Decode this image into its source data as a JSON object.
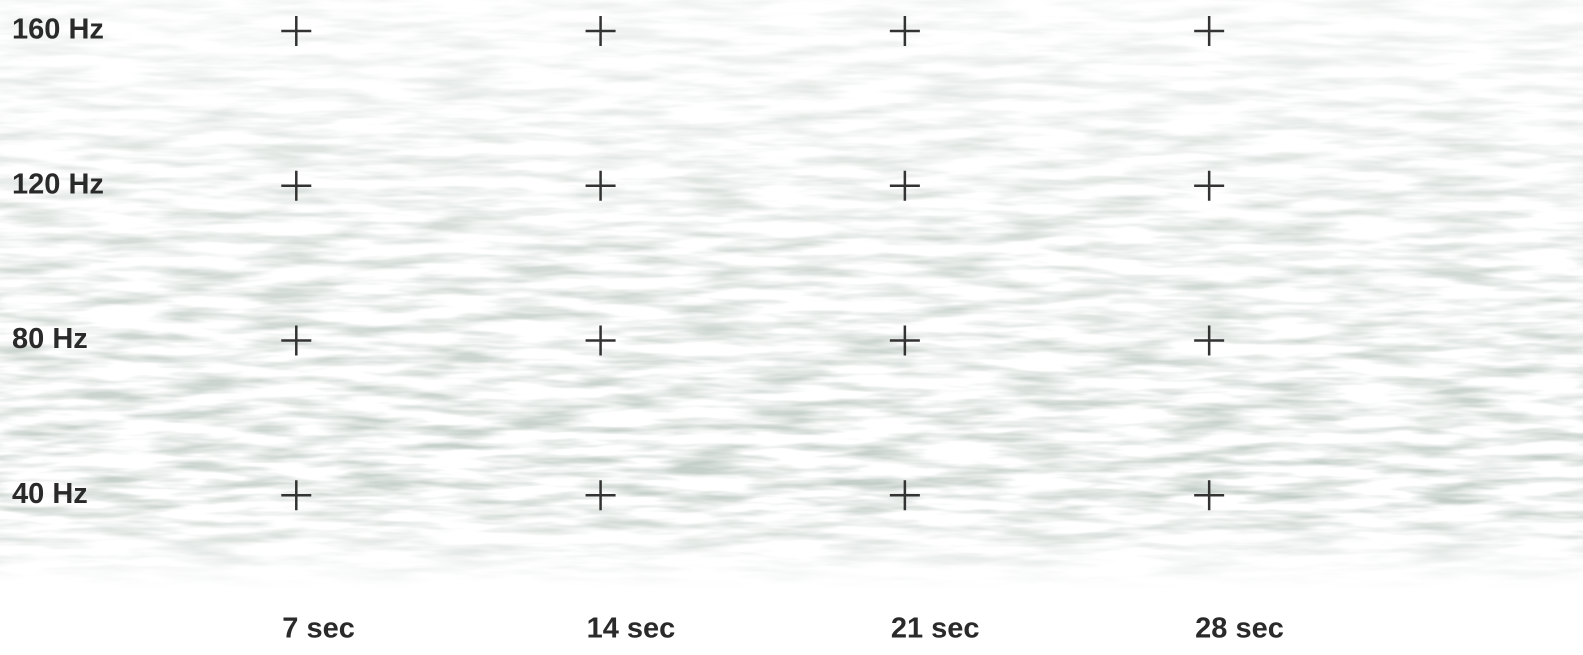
{
  "chart_data": {
    "type": "spectrogram",
    "xlim": [
      0,
      36.6
    ],
    "ylim": [
      0,
      168
    ],
    "xticks": [
      {
        "value": 7,
        "label": "7 sec"
      },
      {
        "value": 14,
        "label": "14 sec"
      },
      {
        "value": 21,
        "label": "21 sec"
      },
      {
        "value": 28,
        "label": "28 sec"
      }
    ],
    "yticks": [
      {
        "value": 40,
        "label": "40 Hz"
      },
      {
        "value": 80,
        "label": "80 Hz"
      },
      {
        "value": 120,
        "label": "120 Hz"
      },
      {
        "value": 160,
        "label": "160 Hz"
      }
    ],
    "color": "#333333"
  }
}
